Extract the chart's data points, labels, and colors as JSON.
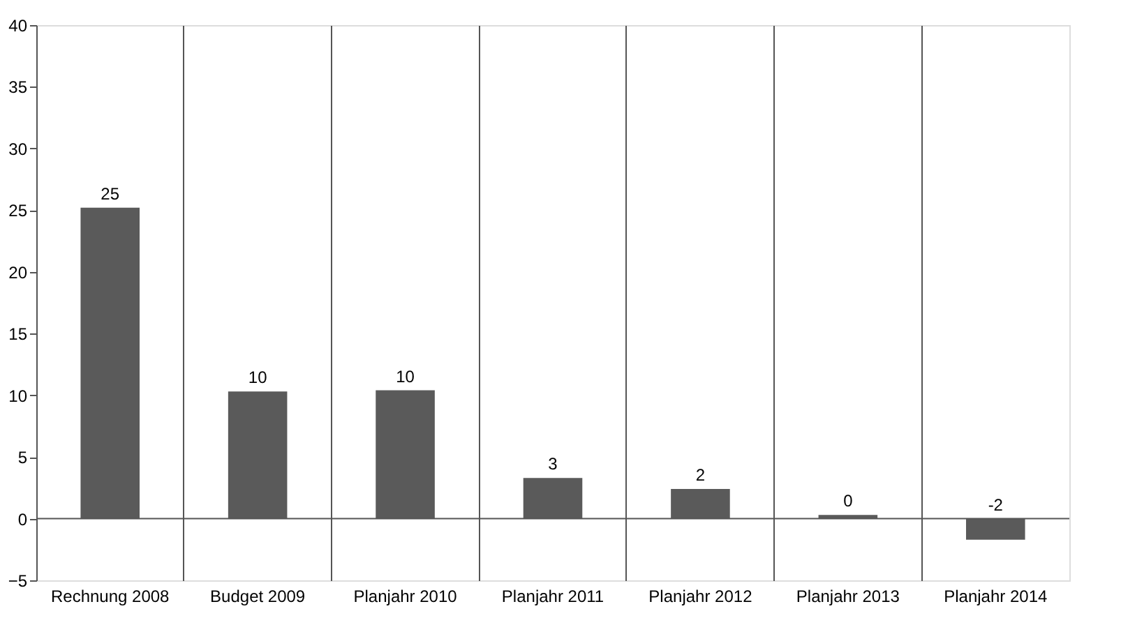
{
  "chart_data": {
    "type": "bar",
    "categories": [
      "Rechnung 2008",
      "Budget 2009",
      "Planjahr 2010",
      "Planjahr 2011",
      "Planjahr 2012",
      "Planjahr 2013",
      "Planjahr 2014"
    ],
    "values": [
      25.2,
      10.3,
      10.4,
      3.3,
      2.4,
      0.3,
      -1.7
    ],
    "value_labels": [
      "25",
      "10",
      "10",
      "3",
      "2",
      "0",
      "-2"
    ],
    "color": "#5a5a5a",
    "ylim": [
      -5,
      40
    ],
    "yticks": [
      -5,
      0,
      5,
      10,
      15,
      20,
      25,
      30,
      35,
      40
    ],
    "ref_lines": [
      {
        "axis": "y",
        "value": 0,
        "color": "#555555"
      }
    ],
    "grid": "x"
  }
}
